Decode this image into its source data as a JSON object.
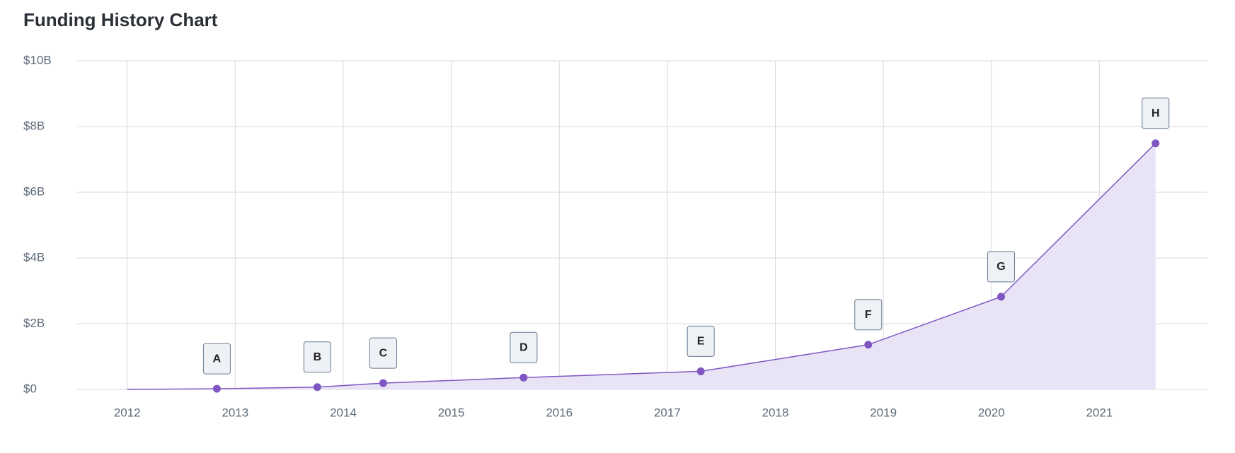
{
  "chart_data": {
    "type": "area",
    "title": "Funding History Chart",
    "x": [
      2012,
      2012.83,
      2013.76,
      2014.37,
      2015.67,
      2017.31,
      2018.86,
      2020.09,
      2021.52
    ],
    "values": [
      0,
      20000000,
      70000000,
      190000000,
      360000000,
      550000000,
      1360000000,
      2820000000,
      7490000000
    ],
    "labels": [
      null,
      "A",
      "B",
      "C",
      "D",
      "E",
      "F",
      "G",
      "H"
    ],
    "color": "#7e57c2",
    "fill": "#e8e4f5",
    "xlim": [
      2011.53,
      2022.0
    ],
    "xticks": [
      2012,
      2013,
      2014,
      2015,
      2016,
      2017,
      2018,
      2019,
      2020,
      2021
    ],
    "ylim": [
      0,
      10000000000
    ],
    "yticks": [
      {
        "value": 0,
        "label": "$0"
      },
      {
        "value": 2000000000,
        "label": "$2B"
      },
      {
        "value": 4000000000,
        "label": "$4B"
      },
      {
        "value": 6000000000,
        "label": "$6B"
      },
      {
        "value": 8000000000,
        "label": "$8B"
      },
      {
        "value": 10000000000,
        "label": "$10B"
      }
    ],
    "grid": true
  }
}
